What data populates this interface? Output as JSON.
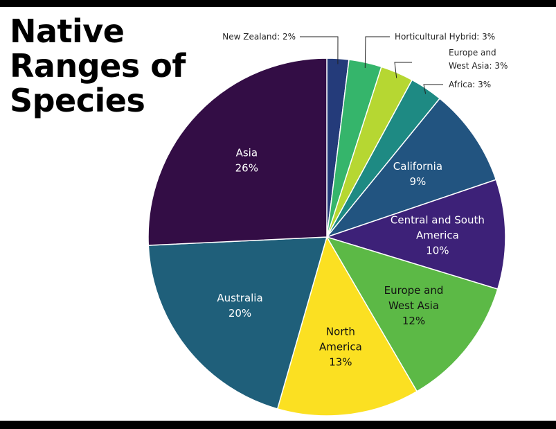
{
  "title_lines": [
    "Native",
    "Ranges of",
    "Species"
  ],
  "chart_data": {
    "type": "pie",
    "title": "Native Ranges of Species",
    "unit": "%",
    "slices": [
      {
        "name": "New Zealand",
        "value": 2,
        "color": "#243b7a",
        "label_style": "outside",
        "label_lines": [
          "New Zealand: 2%"
        ]
      },
      {
        "name": "Horticultural Hybrid",
        "value": 3,
        "color": "#35b56b",
        "label_style": "outside",
        "label_lines": [
          "Horticultural Hybrid: 3%"
        ]
      },
      {
        "name": "Europe and West Asia",
        "value": 3,
        "color": "#b6d732",
        "label_style": "outside",
        "label_lines": [
          "Europe and",
          "West Asia: 3%"
        ]
      },
      {
        "name": "Africa",
        "value": 3,
        "color": "#1e8a83",
        "label_style": "outside",
        "label_lines": [
          "Africa: 3%"
        ]
      },
      {
        "name": "California",
        "value": 9,
        "color": "#225480",
        "label_style": "inside",
        "label_lines": [
          "California",
          "9%"
        ],
        "text_color": "#ffffff"
      },
      {
        "name": "Central and South America",
        "value": 10,
        "color": "#3d2178",
        "label_style": "inside",
        "label_lines": [
          "Central and South",
          "America",
          "10%"
        ],
        "text_color": "#ffffff"
      },
      {
        "name": "Europe and West Asia",
        "value": 12,
        "color": "#5cb946",
        "label_style": "inside",
        "label_lines": [
          "Europe and",
          "West Asia",
          "12%"
        ],
        "text_color": "#111111"
      },
      {
        "name": "North America",
        "value": 13,
        "color": "#fbe022",
        "label_style": "inside",
        "label_lines": [
          "North",
          "America",
          "13%"
        ],
        "text_color": "#111111"
      },
      {
        "name": "Australia",
        "value": 20,
        "color": "#1f5f7a",
        "label_style": "inside",
        "label_lines": [
          "Australia",
          "20%"
        ],
        "text_color": "#ffffff"
      },
      {
        "name": "Asia",
        "value": 26,
        "color": "#330d45",
        "label_style": "inside",
        "label_lines": [
          "Asia",
          "26%"
        ],
        "text_color": "#ffffff"
      }
    ]
  }
}
